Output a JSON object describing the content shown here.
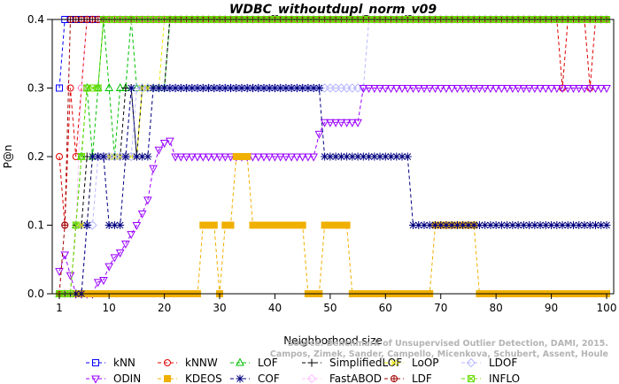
{
  "chart_data": {
    "type": "line",
    "title": "WDBC_withoutdupl_norm_v09",
    "xlabel": "Neighborhood size",
    "ylabel": "P@n",
    "xlim": [
      1,
      100
    ],
    "ylim": [
      0,
      0.4
    ],
    "xticks": [
      1,
      10,
      20,
      30,
      40,
      50,
      60,
      70,
      80,
      90,
      100
    ],
    "yticks": [
      "0.0",
      "0.1",
      "0.2",
      "0.3",
      "0.4"
    ],
    "grid": false,
    "legend_position": "bottom",
    "watermark": [
      "Source: Benchmark of Unsupervised Outlier Detection, DAMI, 2015.",
      "Campos, Zimek, Sander, Campello, Micenkova, Schubert, Assent, Houle"
    ],
    "series": [
      {
        "name": "kNN",
        "color": "#0000ff",
        "marker": "square",
        "points": [
          [
            1,
            0.3
          ],
          [
            2,
            0.4
          ],
          [
            100,
            0.4
          ]
        ]
      },
      {
        "name": "kNNW",
        "color": "#e00000",
        "marker": "circle",
        "points": [
          [
            1,
            0.2
          ],
          [
            2,
            0.1
          ],
          [
            3,
            0.3
          ],
          [
            4,
            0.2
          ],
          [
            5,
            0.3
          ],
          [
            6,
            0.4
          ],
          [
            91,
            0.4
          ],
          [
            92,
            0.3
          ],
          [
            93,
            0.4
          ],
          [
            96,
            0.4
          ],
          [
            97,
            0.3
          ],
          [
            98,
            0.4
          ],
          [
            100,
            0.4
          ]
        ]
      },
      {
        "name": "LOF",
        "color": "#00c000",
        "marker": "triangle-up",
        "points": [
          [
            1,
            0.0
          ],
          [
            3,
            0.0
          ],
          [
            4,
            0.1
          ],
          [
            5,
            0.2
          ],
          [
            6,
            0.3
          ],
          [
            7,
            0.2
          ],
          [
            8,
            0.3
          ],
          [
            9,
            0.4
          ],
          [
            10,
            0.3
          ],
          [
            11,
            0.2
          ],
          [
            12,
            0.3
          ],
          [
            14,
            0.4
          ],
          [
            15,
            0.3
          ],
          [
            20,
            0.3
          ],
          [
            21,
            0.4
          ],
          [
            100,
            0.4
          ]
        ]
      },
      {
        "name": "SimplifiedLOF",
        "color": "#000000",
        "marker": "plus",
        "points": [
          [
            1,
            0.0
          ],
          [
            3,
            0.0
          ],
          [
            4,
            0.1
          ],
          [
            5,
            0.1
          ],
          [
            6,
            0.2
          ],
          [
            12,
            0.2
          ],
          [
            13,
            0.3
          ],
          [
            14,
            0.3
          ],
          [
            15,
            0.2
          ],
          [
            16,
            0.3
          ],
          [
            20,
            0.3
          ],
          [
            21,
            0.4
          ],
          [
            100,
            0.4
          ]
        ]
      },
      {
        "name": "LoOP",
        "color": "#e8e800",
        "marker": "cross",
        "points": [
          [
            1,
            0.0
          ],
          [
            3,
            0.0
          ],
          [
            4,
            0.1
          ],
          [
            6,
            0.1
          ],
          [
            7,
            0.2
          ],
          [
            15,
            0.2
          ],
          [
            16,
            0.3
          ],
          [
            19,
            0.3
          ],
          [
            20,
            0.4
          ],
          [
            100,
            0.4
          ]
        ]
      },
      {
        "name": "LDOF",
        "color": "#b8b8ff",
        "marker": "diamond",
        "points": [
          [
            1,
            0.0
          ],
          [
            5,
            0.0
          ],
          [
            6,
            0.1
          ],
          [
            8,
            0.2
          ],
          [
            14,
            0.2
          ],
          [
            15,
            0.3
          ],
          [
            48,
            0.3
          ],
          [
            56,
            0.3
          ],
          [
            57,
            0.4
          ],
          [
            100,
            0.4
          ]
        ]
      },
      {
        "name": "ODIN",
        "color": "#9900ff",
        "marker": "triangle-down",
        "points": [
          [
            1,
            0.033
          ],
          [
            2,
            0.057
          ],
          [
            3,
            0.027
          ],
          [
            4,
            0.0
          ],
          [
            7,
            0.0
          ],
          [
            8,
            0.017
          ],
          [
            9,
            0.02
          ],
          [
            10,
            0.04
          ],
          [
            11,
            0.053
          ],
          [
            12,
            0.06
          ],
          [
            13,
            0.073
          ],
          [
            14,
            0.087
          ],
          [
            15,
            0.1
          ],
          [
            16,
            0.117
          ],
          [
            17,
            0.137
          ],
          [
            18,
            0.183
          ],
          [
            19,
            0.21
          ],
          [
            20,
            0.22
          ],
          [
            21,
            0.223
          ],
          [
            22,
            0.2
          ],
          [
            47,
            0.2
          ],
          [
            48,
            0.233
          ],
          [
            49,
            0.25
          ],
          [
            55,
            0.25
          ],
          [
            56,
            0.3
          ],
          [
            100,
            0.3
          ]
        ]
      },
      {
        "name": "KDEOS",
        "color": "#f0b000",
        "marker": "square-filled",
        "points": [
          [
            1,
            0.0
          ],
          [
            26,
            0.0
          ],
          [
            27,
            0.1
          ],
          [
            29,
            0.1
          ],
          [
            30,
            0.0
          ],
          [
            31,
            0.1
          ],
          [
            32,
            0.1
          ],
          [
            33,
            0.2
          ],
          [
            35,
            0.2
          ],
          [
            36,
            0.1
          ],
          [
            45,
            0.1
          ],
          [
            46,
            0.0
          ],
          [
            48,
            0.0
          ],
          [
            49,
            0.1
          ],
          [
            53,
            0.1
          ],
          [
            54,
            0.0
          ],
          [
            68,
            0.0
          ],
          [
            69,
            0.1
          ],
          [
            76,
            0.1
          ],
          [
            77,
            0.0
          ],
          [
            100,
            0.0
          ]
        ]
      },
      {
        "name": "COF",
        "color": "#000080",
        "marker": "star",
        "points": [
          [
            1,
            0.0
          ],
          [
            5,
            0.0
          ],
          [
            6,
            0.1
          ],
          [
            7,
            0.2
          ],
          [
            9,
            0.2
          ],
          [
            10,
            0.1
          ],
          [
            12,
            0.1
          ],
          [
            13,
            0.2
          ],
          [
            14,
            0.3
          ],
          [
            15,
            0.2
          ],
          [
            17,
            0.2
          ],
          [
            18,
            0.3
          ],
          [
            48,
            0.3
          ],
          [
            49,
            0.2
          ],
          [
            64,
            0.2
          ],
          [
            65,
            0.1
          ],
          [
            100,
            0.1
          ]
        ]
      },
      {
        "name": "FastABOD",
        "color": "#ffc0ff",
        "marker": "diamond",
        "points": [
          [
            1,
            0.0
          ],
          [
            3,
            0.0
          ],
          [
            4,
            0.1
          ],
          [
            5,
            0.3
          ],
          [
            6,
            0.4
          ],
          [
            100,
            0.4
          ]
        ]
      },
      {
        "name": "LDF",
        "color": "#a00000",
        "marker": "circle-plus",
        "points": [
          [
            1,
            0.0
          ],
          [
            2,
            0.1
          ],
          [
            3,
            0.4
          ],
          [
            100,
            0.4
          ]
        ]
      },
      {
        "name": "INFLO",
        "color": "#66dd00",
        "marker": "square-x",
        "points": [
          [
            1,
            0.0
          ],
          [
            3,
            0.0
          ],
          [
            4,
            0.1
          ],
          [
            5,
            0.2
          ],
          [
            6,
            0.3
          ],
          [
            8,
            0.3
          ],
          [
            9,
            0.4
          ],
          [
            100,
            0.4
          ]
        ]
      }
    ]
  }
}
